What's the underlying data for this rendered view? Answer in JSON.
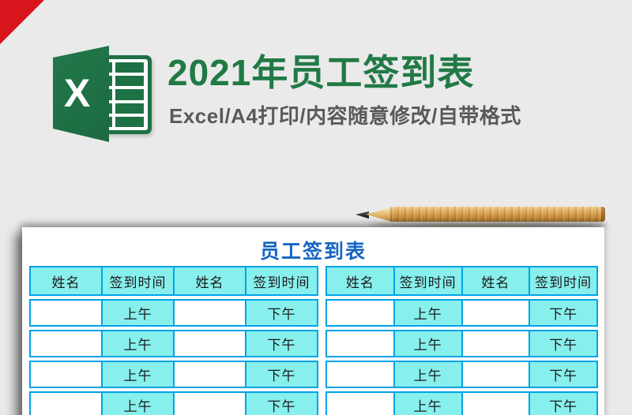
{
  "page": {
    "background_color": "#eaeaea"
  },
  "corner_ribbon": {
    "color": "#d8141c"
  },
  "logo": {
    "letter": "X",
    "green": "#1e7145"
  },
  "hero": {
    "title": "2021年员工签到表",
    "title_color": "#217a46",
    "subtitle": "Excel/A4打印/内容随意修改/自带格式",
    "subtitle_color": "#595959"
  },
  "preview": {
    "sheet_title": "员工签到表",
    "sheet_title_color": "#1565c0",
    "header_fill": "#87efec",
    "grid_color": "#00a3e8",
    "column_headers": [
      "姓名",
      "签到时间",
      "姓名",
      "签到时间"
    ],
    "data_row": [
      "",
      "上午",
      "",
      "下午"
    ],
    "row_count": 4,
    "table_count": 2
  }
}
